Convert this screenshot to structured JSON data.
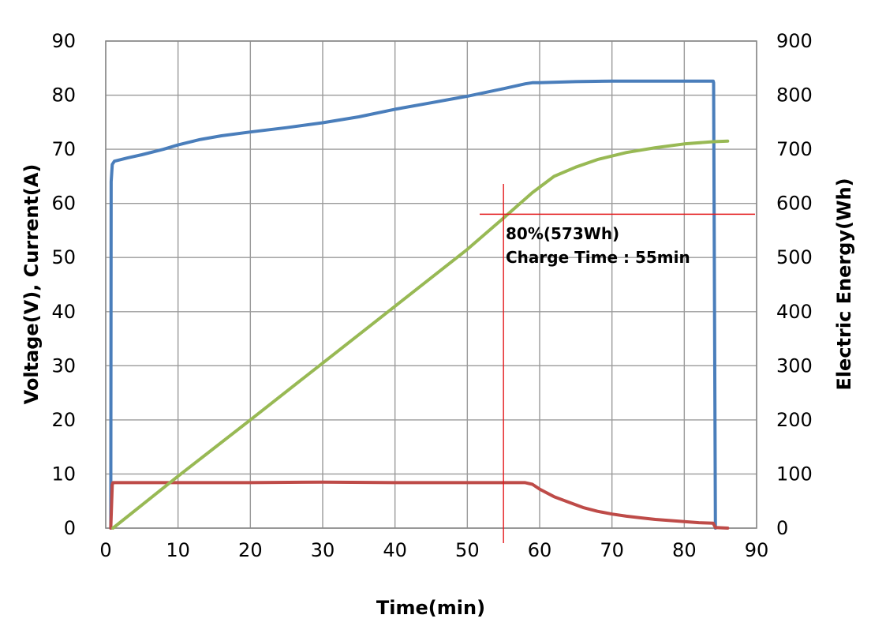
{
  "chart_data": {
    "type": "line",
    "title": "",
    "xlabel": "Time(min)",
    "ylabel": "Voltage(V), Current(A)",
    "y2label": "Electric Energy(Wh)",
    "xlim": [
      0,
      90
    ],
    "ylim": [
      0,
      90
    ],
    "y2lim": [
      0,
      900
    ],
    "xticks": [
      "0",
      "10",
      "20",
      "30",
      "40",
      "50",
      "60",
      "70",
      "80",
      "90"
    ],
    "yticks": [
      "0",
      "10",
      "20",
      "30",
      "40",
      "50",
      "60",
      "70",
      "80",
      "90"
    ],
    "y2ticks": [
      "0",
      "100",
      "200",
      "300",
      "400",
      "500",
      "600",
      "700",
      "800",
      "900"
    ],
    "grid": true,
    "legend": "none",
    "colors": {
      "voltage": "#4a7ebb",
      "current": "#be4b48",
      "energy": "#98b954",
      "marker": "#e41a1c"
    },
    "series": [
      {
        "key": "voltage",
        "axis": "left",
        "x": [
          0.7,
          0.75,
          0.9,
          1.2,
          3,
          5,
          8,
          10,
          13,
          16,
          20,
          25,
          30,
          35,
          40,
          45,
          50,
          55,
          58,
          59,
          60,
          65,
          70,
          75,
          80,
          84,
          84.05,
          84.3
        ],
        "y": [
          0,
          64,
          67.2,
          67.8,
          68.4,
          69,
          70,
          70.8,
          71.8,
          72.5,
          73.2,
          74,
          74.9,
          76,
          77.4,
          78.6,
          79.8,
          81.2,
          82.1,
          82.3,
          82.3,
          82.5,
          82.6,
          82.6,
          82.6,
          82.6,
          82.3,
          0
        ]
      },
      {
        "key": "current",
        "axis": "left",
        "x": [
          0.7,
          0.9,
          1,
          5,
          10,
          20,
          30,
          40,
          50,
          55,
          58,
          59,
          60,
          62,
          64,
          66,
          68,
          70,
          72,
          74,
          76,
          78,
          80,
          82,
          84,
          84.3,
          86
        ],
        "y": [
          0,
          8,
          8.4,
          8.4,
          8.4,
          8.4,
          8.5,
          8.4,
          8.4,
          8.4,
          8.4,
          8.1,
          7.2,
          5.8,
          4.8,
          3.8,
          3.1,
          2.6,
          2.2,
          1.9,
          1.6,
          1.4,
          1.2,
          1.0,
          0.9,
          0.1,
          0
        ]
      },
      {
        "key": "energy",
        "axis": "right",
        "x": [
          1,
          10,
          20,
          30,
          40,
          50,
          55,
          59,
          62,
          65,
          68,
          72,
          76,
          80,
          84,
          86
        ],
        "y": [
          0,
          96,
          200,
          305,
          410,
          515,
          573,
          620,
          650,
          667,
          681,
          694,
          703,
          710,
          714,
          715
        ]
      }
    ],
    "annotations": {
      "line1": "80%(573Wh)",
      "line2": "Charge Time : 55min",
      "marker_x": 55,
      "marker_y_right": 580
    }
  }
}
